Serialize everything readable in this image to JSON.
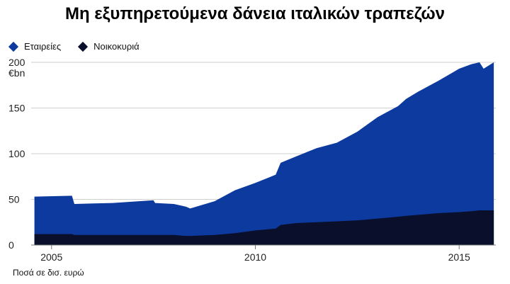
{
  "chart_data": {
    "type": "area",
    "title": "Μη εξυπηρετούμενα δάνεια ιταλικών τραπεζών",
    "unit_label": "€bn",
    "footnote": "Ποσά σε δισ. ευρώ",
    "ylim": [
      0,
      200
    ],
    "yticks": [
      0,
      50,
      100,
      150,
      200
    ],
    "xticks": [
      2005,
      2010,
      2015
    ],
    "xlim": [
      2004.5,
      2015.9
    ],
    "grid": true,
    "legend_position": "top-left",
    "x": [
      2004.58,
      2005.5,
      2005.56,
      2006.5,
      2007.5,
      2007.54,
      2008,
      2008.3,
      2008.4,
      2009,
      2009.5,
      2010,
      2010.5,
      2010.62,
      2011,
      2011.5,
      2012,
      2012.5,
      2013,
      2013.5,
      2013.7,
      2014,
      2014.5,
      2015,
      2015.3,
      2015.5,
      2015.6,
      2015.85
    ],
    "series": [
      {
        "name": "Εταιρείες",
        "color": "#0d3a9e",
        "values": [
          53,
          54,
          45,
          46,
          49,
          46,
          45,
          42,
          40,
          48,
          60,
          68,
          77,
          90,
          97,
          106,
          112,
          124,
          140,
          152,
          160,
          168,
          180,
          193,
          198,
          200,
          193,
          200
        ]
      },
      {
        "name": "Νοικοκυριά",
        "color": "#0a0f2c",
        "values": [
          12,
          12,
          11,
          11,
          11,
          11,
          11,
          10,
          10,
          11,
          13,
          16,
          18,
          22,
          24,
          25,
          26,
          27,
          29,
          31,
          32,
          33,
          35,
          36,
          37,
          38,
          38,
          38
        ]
      }
    ]
  }
}
